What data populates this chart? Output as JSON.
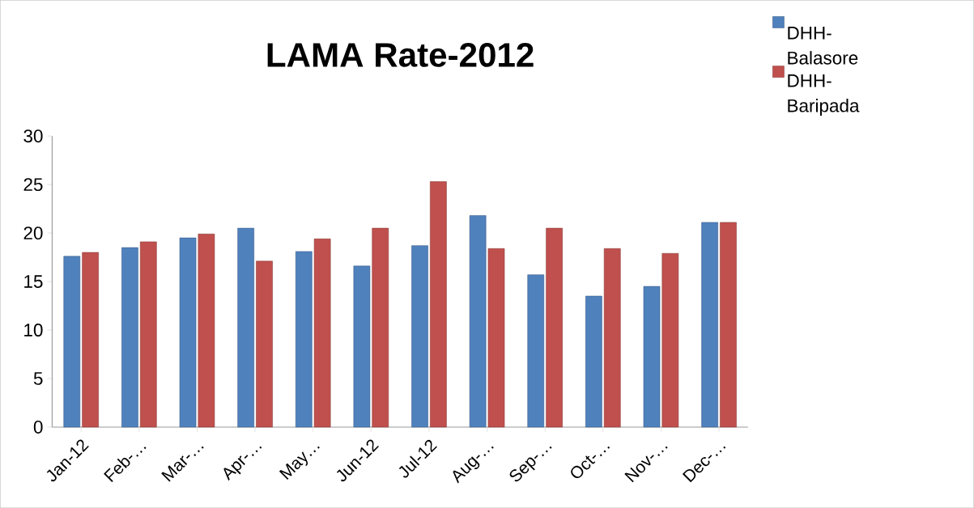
{
  "chart_data": {
    "type": "bar",
    "title": "LAMA Rate-2012",
    "categories": [
      "Jan-12",
      "Feb-…",
      "Mar-…",
      "Apr-…",
      "May…",
      "Jun-12",
      "Jul-12",
      "Aug-…",
      "Sep-…",
      "Oct-…",
      "Nov-…",
      "Dec-…"
    ],
    "series": [
      {
        "name": "DHH-Balasore",
        "color": "#4f81bd",
        "values": [
          17.6,
          18.5,
          19.5,
          20.5,
          18.1,
          16.6,
          18.7,
          21.8,
          15.7,
          13.5,
          14.5,
          21.1
        ]
      },
      {
        "name": "DHH-Baripada",
        "color": "#c0504d",
        "values": [
          18.0,
          19.1,
          19.9,
          17.1,
          19.4,
          20.5,
          25.3,
          18.4,
          20.5,
          18.4,
          17.9,
          21.1
        ]
      }
    ],
    "ylim": [
      0,
      30
    ],
    "yticks": [
      0,
      5,
      10,
      15,
      20,
      25,
      30
    ],
    "legend": "right",
    "grid": false
  }
}
